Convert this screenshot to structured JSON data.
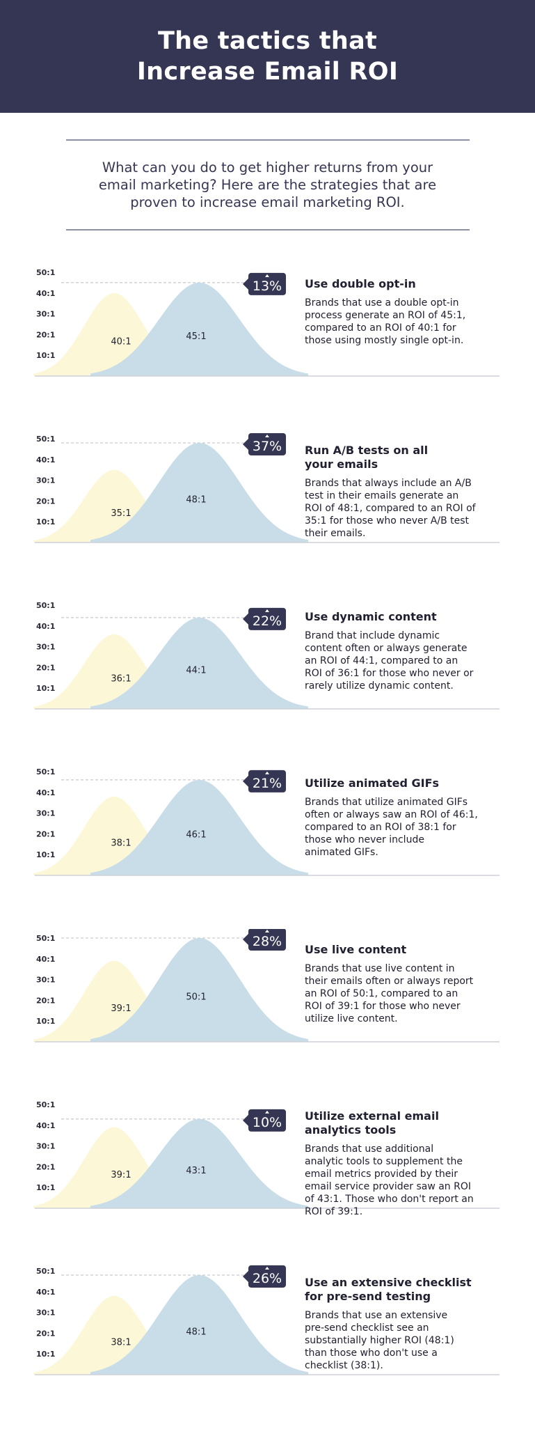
{
  "header": {
    "title_lines": [
      "The tactics that",
      "Increase Email ROI"
    ]
  },
  "intro": {
    "lines": [
      "What can you do to get higher returns from your",
      "email marketing? Here are the strategies that are",
      "proven to increase email marketing ROI."
    ]
  },
  "colors": {
    "header_bg": "#353653",
    "yellow_curve": "#fcf7d7",
    "blue_curve": "#c8dde7",
    "badge_bg": "#353653",
    "badge_text": "#ffffff",
    "divider": "#8d8fa3"
  },
  "sections": [
    {
      "title_lines": [
        "Use double opt-in"
      ],
      "desc_lines": [
        "Brands that use a double opt-in",
        "process generate an ROI of 45:1,",
        "compared to an ROI of 40:1 for",
        "those using mostly single opt-in."
      ]
    },
    {
      "title_lines": [
        "Run A/B tests on all",
        "your emails"
      ],
      "desc_lines": [
        "Brands that always include an A/B",
        "test in their emails generate an",
        "ROI of 48:1, compared to an ROI of",
        "35:1 for those who never A/B test",
        "their emails."
      ]
    },
    {
      "title_lines": [
        "Use dynamic content"
      ],
      "desc_lines": [
        "Brand that include dynamic",
        "content often or always generate",
        "an ROI of 44:1, compared to an",
        "ROI of 36:1 for those who never or",
        "rarely utilize dynamic content."
      ]
    },
    {
      "title_lines": [
        "Utilize animated GIFs"
      ],
      "desc_lines": [
        "Brands that utilize animated GIFs",
        "often or always saw an ROI of 46:1,",
        "compared to an ROI of 38:1 for",
        "those who never include",
        "animated GIFs."
      ]
    },
    {
      "title_lines": [
        "Use live content"
      ],
      "desc_lines": [
        "Brands that use live content in",
        "their emails often or always report",
        "an ROI of 50:1, compared to an",
        "ROI of 39:1 for those who never",
        "utilize live content."
      ]
    },
    {
      "title_lines": [
        "Utilize external email",
        "analytics tools"
      ],
      "desc_lines": [
        "Brands that use additional",
        "analytic tools to supplement the",
        "email metrics provided by their",
        "email service provider saw an ROI",
        "of 43:1. Those who don't report an",
        "ROI of 39:1."
      ]
    },
    {
      "title_lines": [
        "Use an extensive checklist",
        "for pre-send testing"
      ],
      "desc_lines": [
        "Brands that use an extensive",
        "pre-send checklist see an",
        "substantially higher ROI (48:1)",
        "than those who don't use a",
        "checklist (38:1)."
      ]
    }
  ],
  "chart_data": [
    {
      "type": "area",
      "ytick_labels": [
        "10:1",
        "20:1",
        "30:1",
        "40:1",
        "50:1"
      ],
      "ylim": [
        0,
        50
      ],
      "series": [
        {
          "label": "40:1",
          "value": 40
        },
        {
          "label": "45:1",
          "value": 45
        }
      ],
      "badge": "13%"
    },
    {
      "type": "area",
      "ytick_labels": [
        "10:1",
        "20:1",
        "30:1",
        "40:1",
        "50:1"
      ],
      "ylim": [
        0,
        50
      ],
      "series": [
        {
          "label": "35:1",
          "value": 35
        },
        {
          "label": "48:1",
          "value": 48
        }
      ],
      "badge": "37%"
    },
    {
      "type": "area",
      "ytick_labels": [
        "10:1",
        "20:1",
        "30:1",
        "40:1",
        "50:1"
      ],
      "ylim": [
        0,
        50
      ],
      "series": [
        {
          "label": "36:1",
          "value": 36
        },
        {
          "label": "44:1",
          "value": 44
        }
      ],
      "badge": "22%"
    },
    {
      "type": "area",
      "ytick_labels": [
        "10:1",
        "20:1",
        "30:1",
        "40:1",
        "50:1"
      ],
      "ylim": [
        0,
        50
      ],
      "series": [
        {
          "label": "38:1",
          "value": 38
        },
        {
          "label": "46:1",
          "value": 46
        }
      ],
      "badge": "21%"
    },
    {
      "type": "area",
      "ytick_labels": [
        "10:1",
        "20:1",
        "30:1",
        "40:1",
        "50:1"
      ],
      "ylim": [
        0,
        50
      ],
      "series": [
        {
          "label": "39:1",
          "value": 39
        },
        {
          "label": "50:1",
          "value": 50
        }
      ],
      "badge": "28%"
    },
    {
      "type": "area",
      "ytick_labels": [
        "10:1",
        "20:1",
        "30:1",
        "40:1",
        "50:1"
      ],
      "ylim": [
        0,
        50
      ],
      "series": [
        {
          "label": "39:1",
          "value": 39
        },
        {
          "label": "43:1",
          "value": 43
        }
      ],
      "badge": "10%"
    },
    {
      "type": "area",
      "ytick_labels": [
        "10:1",
        "20:1",
        "30:1",
        "40:1",
        "50:1"
      ],
      "ylim": [
        0,
        50
      ],
      "series": [
        {
          "label": "38:1",
          "value": 38
        },
        {
          "label": "48:1",
          "value": 48
        }
      ],
      "badge": "26%"
    }
  ]
}
